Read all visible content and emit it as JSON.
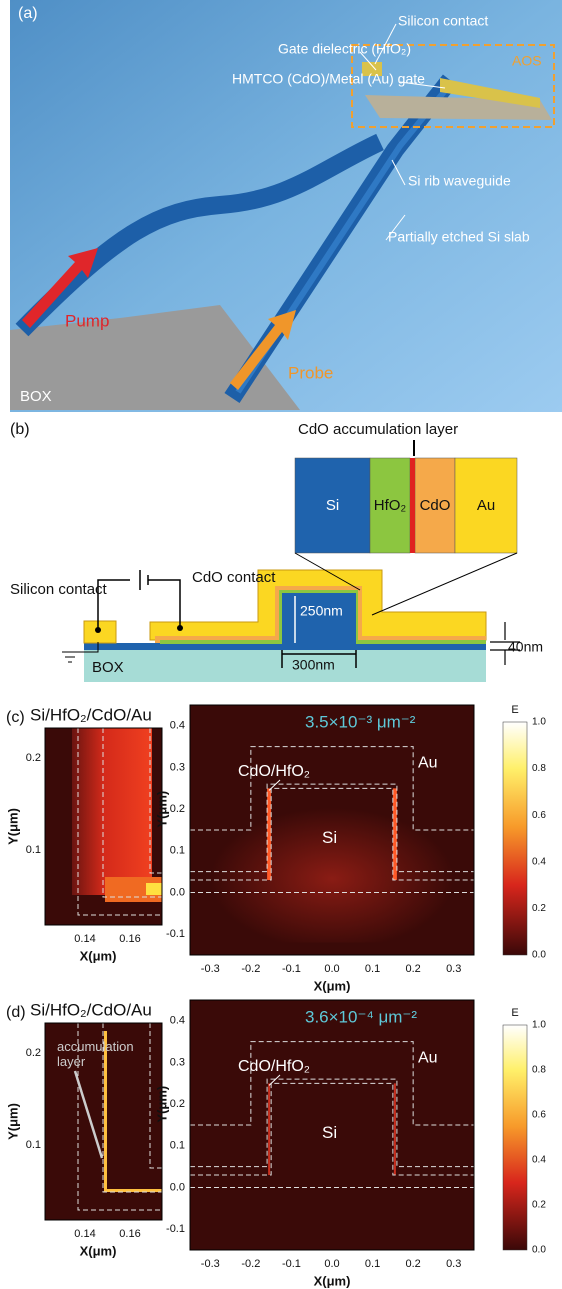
{
  "panel_a": {
    "label": "(a)",
    "silicon_contact": "Silicon contact",
    "gate_dielectric": "Gate dielectric (HfO₂)",
    "gate": "HMTCO (CdO)/Metal (Au) gate",
    "aos": "AOS",
    "rib": "Si rib waveguide",
    "slab": "Partially etched Si slab",
    "pump": "Pump",
    "probe": "Probe",
    "box": "BOX"
  },
  "panel_b": {
    "label": "(b)",
    "accumulation": "CdO accumulation layer",
    "layers": [
      "Si",
      "HfO₂",
      "CdO",
      "Au"
    ],
    "silicon_contact": "Silicon contact",
    "cdo_contact": "CdO contact",
    "height": "250nm",
    "width": "300nm",
    "slab": "40nm",
    "box": "BOX"
  },
  "panel_c": {
    "label": "(c)",
    "title": "Si/HfO₂/CdO/Au",
    "inset": {
      "x_ticks": [
        "0.14",
        "0.16"
      ],
      "y_ticks": [
        "0.2",
        "0.1"
      ],
      "x_label": "X(μm)",
      "y_label": "Y(μm)"
    },
    "main": {
      "x_ticks": [
        "-0.3",
        "-0.2",
        "-0.1",
        "0.0",
        "0.1",
        "0.2",
        "0.3"
      ],
      "y_ticks": [
        "0.4",
        "0.3",
        "0.2",
        "0.1",
        "0.0",
        "-0.1"
      ],
      "x_label": "X(μm)",
      "y_label": "Y(μm)",
      "density": "3.5×10⁻³ μm⁻²",
      "interface": "CdO/HfO₂",
      "metal": "Au",
      "core": "Si"
    },
    "colorbar": {
      "label": "E",
      "ticks": [
        "1.0",
        "0.8",
        "0.6",
        "0.4",
        "0.2",
        "0.0"
      ]
    }
  },
  "panel_d": {
    "label": "(d)",
    "title": "Si/HfO₂/CdO/Au",
    "annotation": "accumulation layer",
    "inset": {
      "x_ticks": [
        "0.14",
        "0.16"
      ],
      "y_ticks": [
        "0.2",
        "0.1"
      ],
      "x_label": "X(μm)",
      "y_label": "Y(μm)"
    },
    "main": {
      "x_ticks": [
        "-0.3",
        "-0.2",
        "-0.1",
        "0.0",
        "0.1",
        "0.2",
        "0.3"
      ],
      "y_ticks": [
        "0.4",
        "0.3",
        "0.2",
        "0.1",
        "0.0",
        "-0.1"
      ],
      "x_label": "X(μm)",
      "y_label": "Y(μm)",
      "density": "3.6×10⁻⁴ μm⁻²",
      "interface": "CdO/HfO₂",
      "metal": "Au",
      "core": "Si"
    },
    "colorbar": {
      "label": "E",
      "ticks": [
        "1.0",
        "0.8",
        "0.6",
        "0.4",
        "0.2",
        "0.0"
      ]
    }
  }
}
